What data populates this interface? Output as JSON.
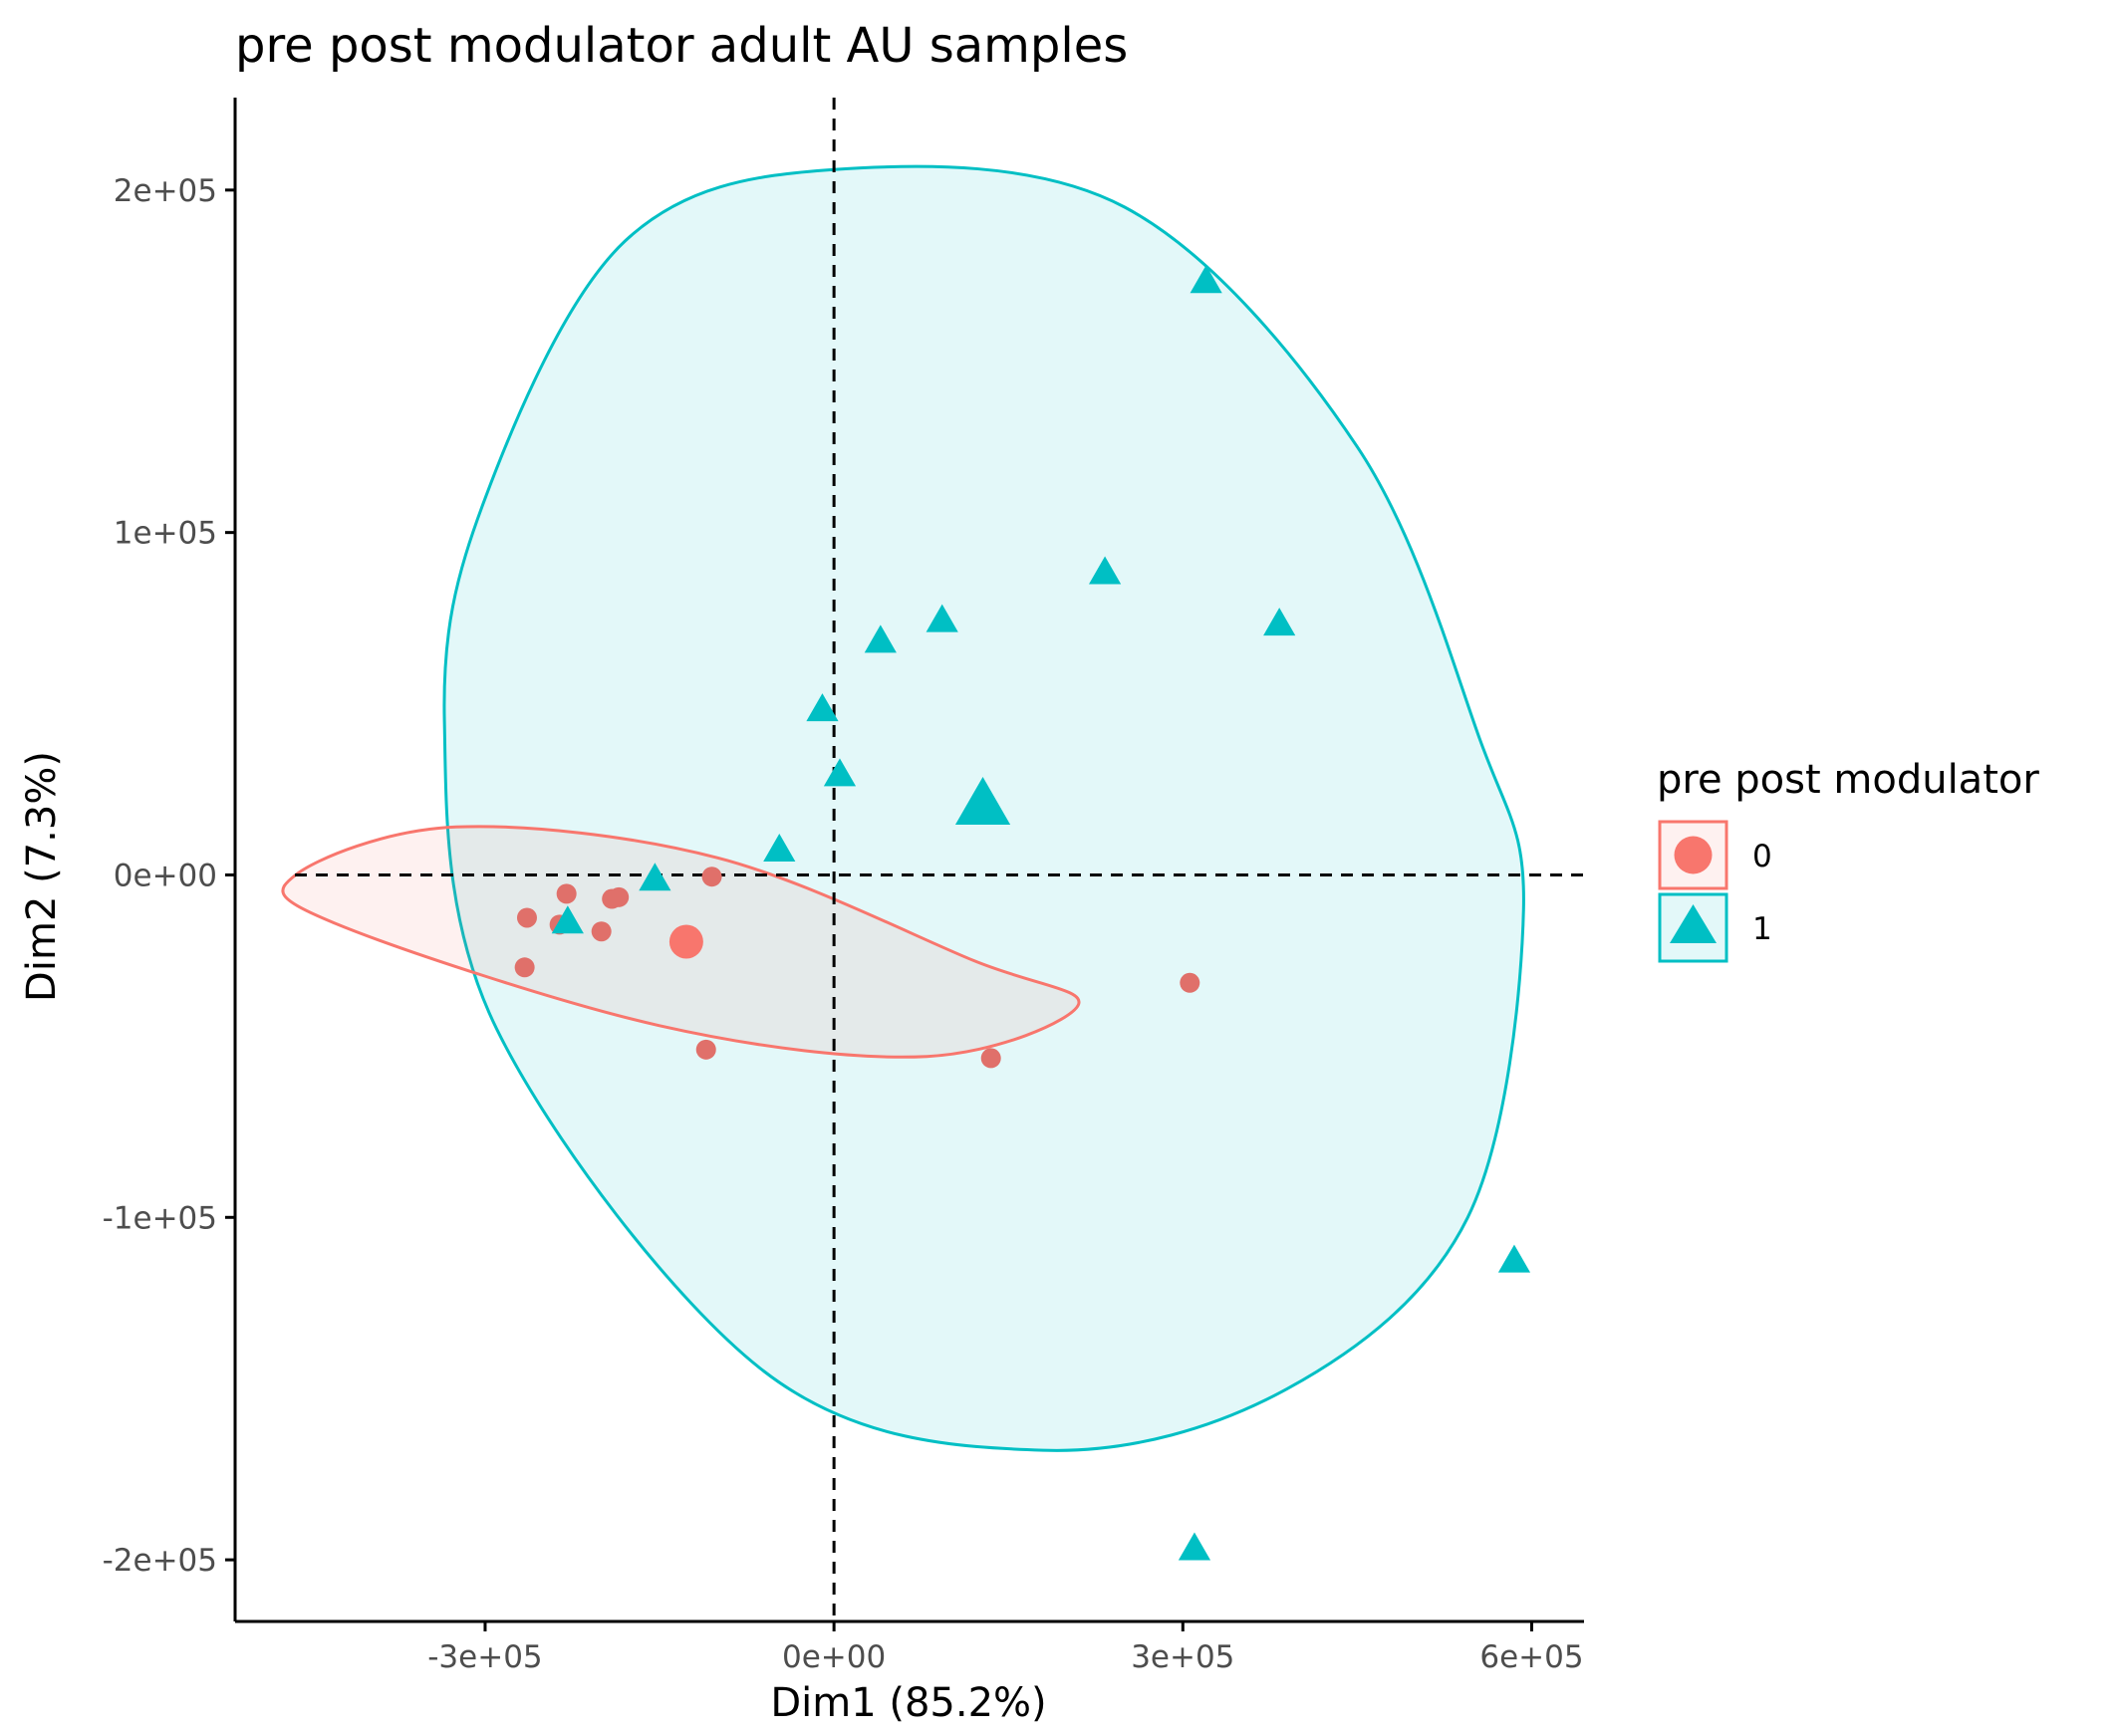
{
  "chart_data": {
    "type": "scatter",
    "title": "pre post modulator adult AU samples",
    "xlabel": "Dim1 (85.2%)",
    "ylabel": "Dim2 (7.3%)",
    "xlim": [
      -515000,
      645000
    ],
    "ylim": [
      -218000,
      227000
    ],
    "x_ticks": [
      -300000,
      0,
      300000,
      600000
    ],
    "x_tick_labels": [
      "-3e+05",
      "0e+00",
      "3e+05",
      "6e+05"
    ],
    "y_ticks": [
      -200000,
      -100000,
      0,
      100000,
      200000
    ],
    "y_tick_labels": [
      "-2e+05",
      "-1e+05",
      "0e+00",
      "1e+05",
      "2e+05"
    ],
    "grid": false,
    "reference_lines": {
      "x": 0,
      "y": 0,
      "style": "dashed"
    },
    "legend": {
      "title": "pre post modulator",
      "placement": "right",
      "entries": [
        {
          "label": "0",
          "shape": "circle",
          "color": "#F8766D"
        },
        {
          "label": "1",
          "shape": "triangle",
          "color": "#00BFC4"
        }
      ]
    },
    "series": [
      {
        "name": "0",
        "shape": "circle",
        "color": "#F8766D",
        "point_color": "#E0706A",
        "points": [
          {
            "x": -105000,
            "y": -500
          },
          {
            "x": -230000,
            "y": -5500
          },
          {
            "x": -264000,
            "y": -12500
          },
          {
            "x": -236000,
            "y": -14500
          },
          {
            "x": -191000,
            "y": -7000
          },
          {
            "x": -185000,
            "y": -6500
          },
          {
            "x": -200000,
            "y": -16500
          },
          {
            "x": -266000,
            "y": -27000
          },
          {
            "x": 306000,
            "y": -31500
          },
          {
            "x": -110000,
            "y": -51000
          },
          {
            "x": 135000,
            "y": -53500
          }
        ],
        "centroid": {
          "x": -127000,
          "y": -19500
        },
        "ellipse": {
          "fill": "#F8766D",
          "fill_opacity": 0.1,
          "outline": [
            [
              -463000,
              0
            ],
            [
              -325000,
              14000
            ],
            [
              -100000,
              5000
            ],
            [
              120000,
              -25000
            ],
            [
              210000,
              -38000
            ],
            [
              80000,
              -53000
            ],
            [
              -150000,
              -44000
            ],
            [
              -430000,
              -14000
            ]
          ]
        }
      },
      {
        "name": "1",
        "shape": "triangle",
        "color": "#00BFC4",
        "points": [
          {
            "x": 320000,
            "y": 173000
          },
          {
            "x": 233000,
            "y": 88000
          },
          {
            "x": 383000,
            "y": 73000
          },
          {
            "x": 93000,
            "y": 74000
          },
          {
            "x": 40000,
            "y": 68000
          },
          {
            "x": -10000,
            "y": 48000
          },
          {
            "x": 5000,
            "y": 29000
          },
          {
            "x": -47000,
            "y": 7000
          },
          {
            "x": -154000,
            "y": -1500
          },
          {
            "x": -229000,
            "y": -14000
          },
          {
            "x": 585000,
            "y": -113000
          },
          {
            "x": 310000,
            "y": -197000
          }
        ],
        "centroid": {
          "x": 128000,
          "y": 20000
        },
        "ellipse": {
          "fill": "#00BFC4",
          "fill_opacity": 0.11,
          "outline": [
            [
              0,
              206000
            ],
            [
              250000,
              195000
            ],
            [
              450000,
              125000
            ],
            [
              555000,
              40000
            ],
            [
              593000,
              -10000
            ],
            [
              545000,
              -100000
            ],
            [
              390000,
              -150000
            ],
            [
              180000,
              -168000
            ],
            [
              -60000,
              -145000
            ],
            [
              -290000,
              -45000
            ],
            [
              -335000,
              45000
            ],
            [
              -300000,
              110000
            ],
            [
              -180000,
              185000
            ]
          ]
        }
      }
    ]
  }
}
